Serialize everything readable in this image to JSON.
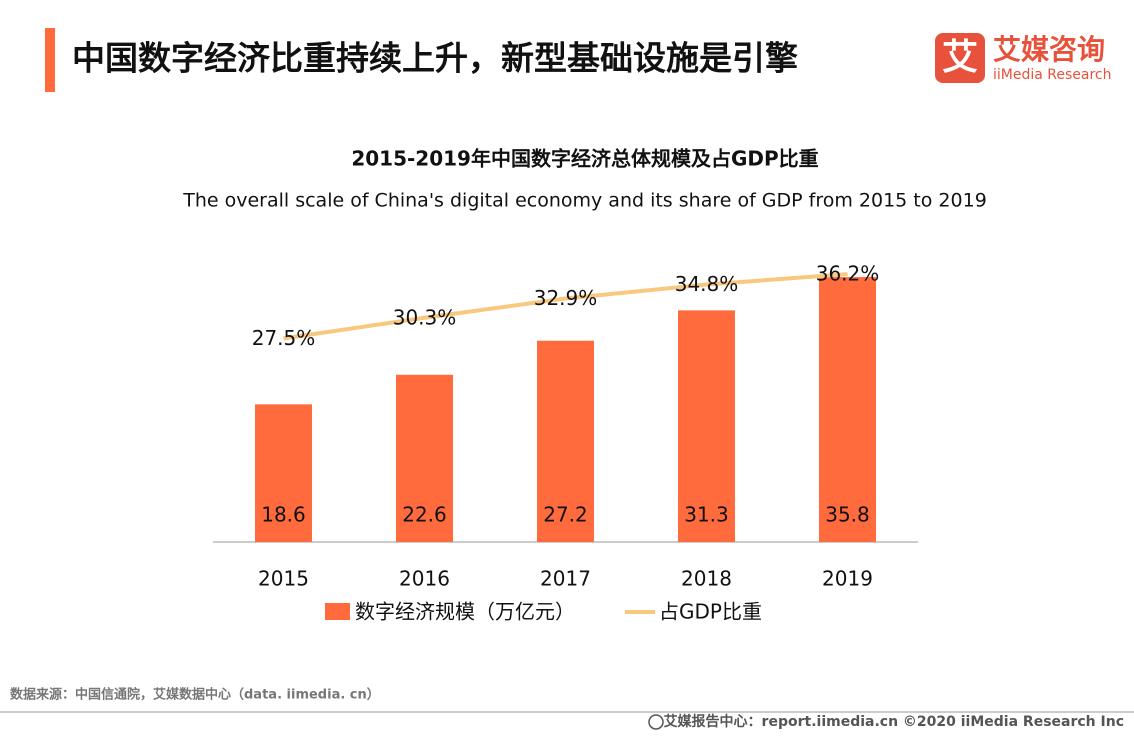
{
  "header": {
    "title": "中国数字经济比重持续上升，新型基础设施是引擎",
    "logo_mark": "艾",
    "logo_cn": "艾媒咨询",
    "logo_en": "iiMedia Research"
  },
  "chart_data": {
    "type": "bar",
    "title": "2015-2019年中国数字经济总体规模及占GDP比重",
    "subtitle": "The overall scale of China's digital economy and its share of GDP from 2015 to 2019",
    "categories": [
      "2015",
      "2016",
      "2017",
      "2018",
      "2019"
    ],
    "series": [
      {
        "name": "数字经济规模（万亿元）",
        "type": "bar",
        "color": "#ff6b3d",
        "values": [
          18.6,
          22.6,
          27.2,
          31.3,
          35.8
        ]
      },
      {
        "name": "占GDP比重",
        "type": "line",
        "axis": "y2",
        "color": "#f9c87f",
        "values": [
          27.5,
          30.3,
          32.9,
          34.8,
          36.2
        ],
        "value_labels": [
          "27.5%",
          "30.3%",
          "32.9%",
          "34.8%",
          "36.2%"
        ]
      }
    ],
    "ylim": [
      0,
      40
    ],
    "y2lim": [
      0,
      40
    ]
  },
  "footer": {
    "source": "数据来源：中国信通院，艾媒数据中心（data. iimedia. cn）",
    "credit": "艾媒报告中心：report.iimedia.cn  ©2020  iiMedia Research  Inc"
  }
}
